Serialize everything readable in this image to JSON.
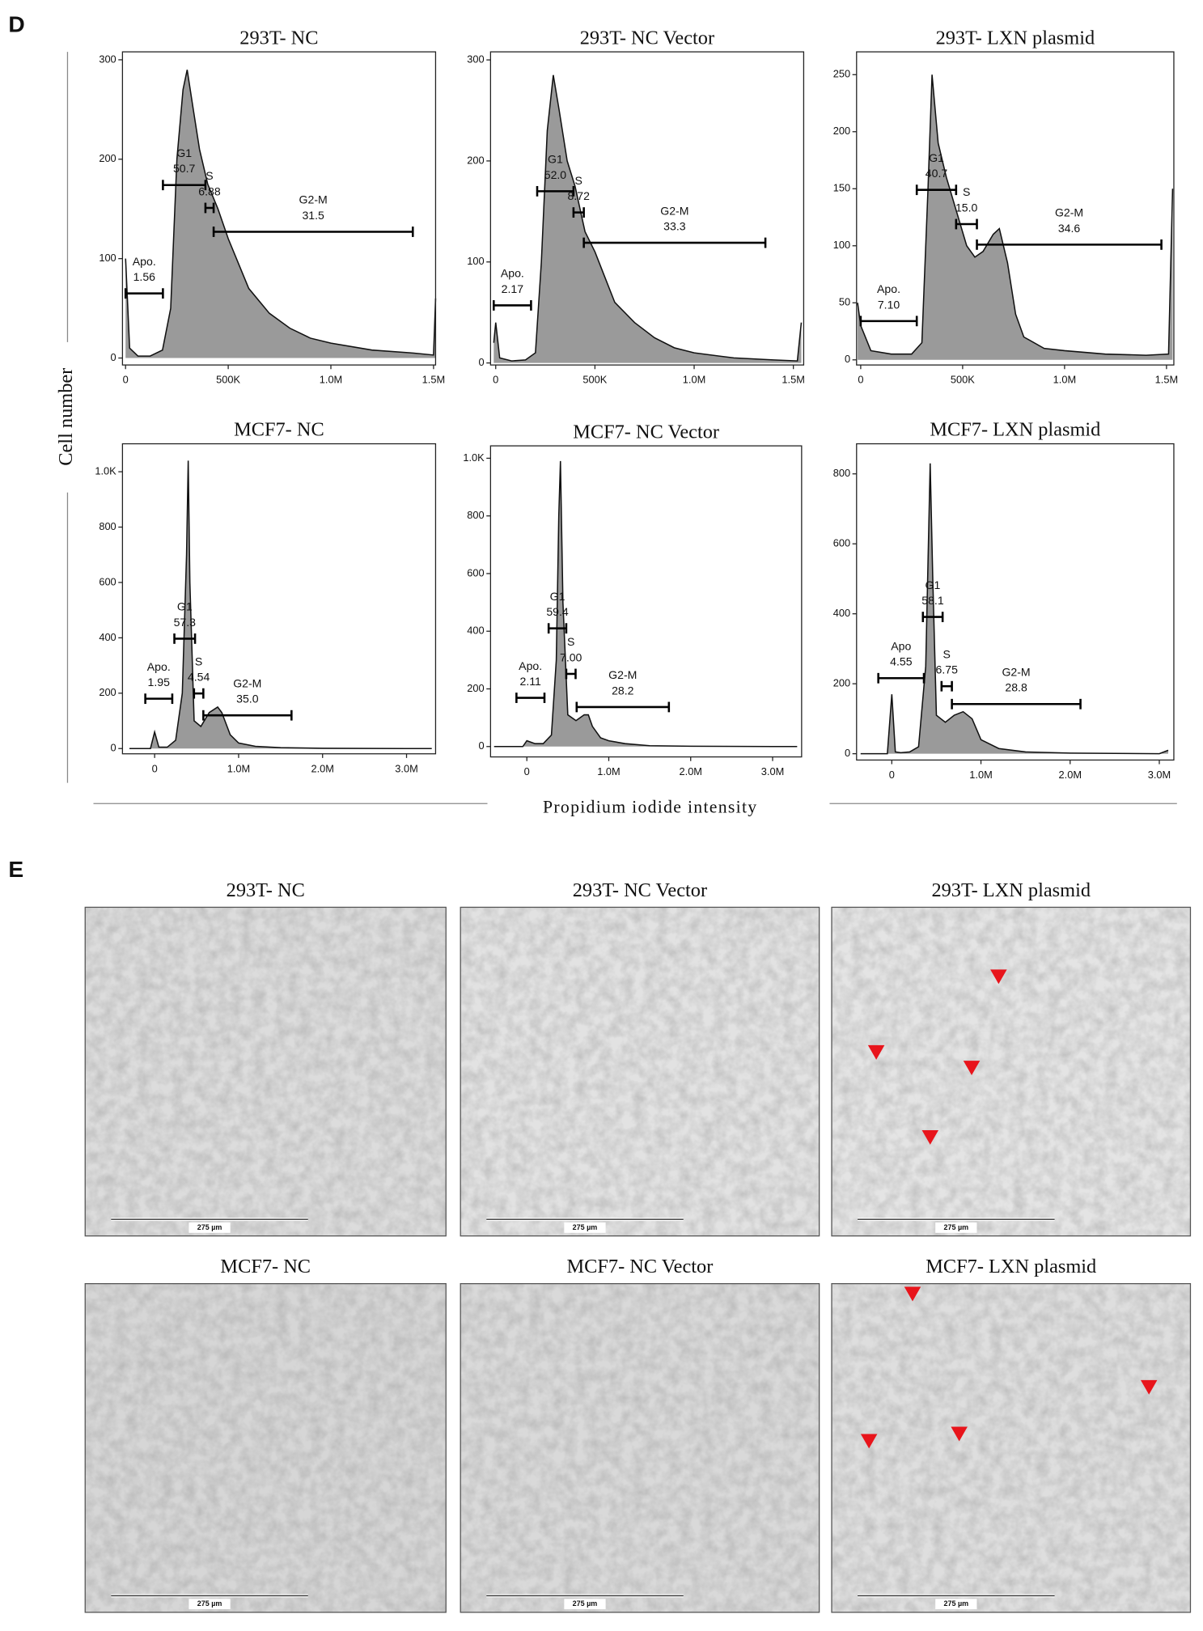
{
  "figure": {
    "panel_d_label": "D",
    "y_label": "Cell number",
    "x_label": "Propidium iodide intensity",
    "panel_e_label": "E",
    "images": [
      {
        "title": "293T- NC",
        "scale_bar": "275 µm"
      },
      {
        "title": "293T- NC Vector",
        "scale_bar": "275 µm"
      },
      {
        "title": "293T- LXN plasmid",
        "scale_bar": "275 µm"
      },
      {
        "title": "MCF7- NC",
        "scale_bar": "275 µm"
      },
      {
        "title": "MCF7- NC Vector",
        "scale_bar": "275 µm"
      },
      {
        "title": "MCF7- LXN plasmid",
        "scale_bar": "275 µm"
      }
    ]
  },
  "chart_data": [
    {
      "type": "histogram-area",
      "title": "293T- NC",
      "color": "#9a9a9a",
      "x": [
        0,
        20000,
        60000,
        120000,
        180000,
        220000,
        250000,
        280000,
        300000,
        330000,
        360000,
        400000,
        450000,
        500000,
        550000,
        600000,
        700000,
        800000,
        900000,
        1000000,
        1200000,
        1400000,
        1500000,
        1510000
      ],
      "values": [
        100,
        10,
        2,
        2,
        8,
        50,
        200,
        270,
        290,
        250,
        210,
        175,
        150,
        120,
        95,
        70,
        45,
        30,
        20,
        15,
        8,
        5,
        3,
        60
      ],
      "xlim": [
        -15000,
        1510000
      ],
      "ylim": [
        -7,
        308
      ],
      "xticks": [
        0,
        {
          "value": 500000,
          "label": "500K"
        },
        {
          "value": 1000000,
          "label": "1.0M"
        },
        {
          "value": 1500000,
          "label": "1.5M"
        }
      ],
      "yticks": [
        0,
        100,
        200,
        300
      ],
      "gates": [
        {
          "name": "Apo.",
          "percent": 1.56,
          "range": [
            0,
            182000
          ],
          "level": 65
        },
        {
          "name": "G1",
          "percent": 50.7,
          "range": [
            182000,
            389000
          ],
          "level": 174
        },
        {
          "name": "S",
          "percent": 6.88,
          "range": [
            389000,
            429000
          ],
          "level": 151
        },
        {
          "name": "G2-M",
          "percent": 31.5,
          "range": [
            429000,
            1399000
          ],
          "level": 127
        }
      ]
    },
    {
      "type": "histogram-area",
      "title": "293T- NC Vector",
      "color": "#9a9a9a",
      "x": [
        -10000,
        0,
        20000,
        80000,
        150000,
        200000,
        230000,
        260000,
        290000,
        320000,
        360000,
        400000,
        450000,
        500000,
        550000,
        600000,
        700000,
        800000,
        900000,
        1000000,
        1200000,
        1400000,
        1520000,
        1540000
      ],
      "values": [
        20,
        40,
        5,
        2,
        3,
        10,
        100,
        230,
        285,
        250,
        200,
        175,
        130,
        110,
        85,
        60,
        40,
        25,
        15,
        10,
        5,
        3,
        2,
        40
      ],
      "xlim": [
        -26000,
        1552000
      ],
      "ylim": [
        -2,
        308
      ],
      "xticks": [
        0,
        {
          "value": 500000,
          "label": "500K"
        },
        {
          "value": 1000000,
          "label": "1.0M"
        },
        {
          "value": 1500000,
          "label": "1.5M"
        }
      ],
      "yticks": [
        0,
        100,
        200,
        300
      ],
      "gates": [
        {
          "name": "Apo.",
          "percent": 2.17,
          "range": [
            -10000,
            178000
          ],
          "level": 57
        },
        {
          "name": "G1",
          "percent": 52.0,
          "percent_label": "52.0",
          "range": [
            209000,
            392000
          ],
          "level": 170
        },
        {
          "name": "S",
          "percent": 8.72,
          "range": [
            392000,
            444000
          ],
          "level": 149
        },
        {
          "name": "G2-M",
          "percent": 33.3,
          "range": [
            444000,
            1359000
          ],
          "level": 119
        }
      ]
    },
    {
      "type": "histogram-area",
      "title": "293T- LXN plasmid",
      "color": "#9a9a9a",
      "x": [
        -15000,
        0,
        50000,
        150000,
        250000,
        300000,
        330000,
        350000,
        380000,
        420000,
        470000,
        520000,
        560000,
        600000,
        650000,
        680000,
        720000,
        760000,
        800000,
        900000,
        1000000,
        1200000,
        1400000,
        1510000,
        1530000
      ],
      "values": [
        50,
        30,
        8,
        5,
        5,
        15,
        150,
        250,
        190,
        160,
        130,
        100,
        90,
        95,
        110,
        115,
        85,
        40,
        20,
        10,
        8,
        5,
        4,
        5,
        150
      ],
      "xlim": [
        -20300,
        1536000
      ],
      "ylim": [
        -4.5,
        270
      ],
      "xticks": [
        0,
        {
          "value": 500000,
          "label": "500K"
        },
        {
          "value": 1000000,
          "label": "1.0M"
        },
        {
          "value": 1500000,
          "label": "1.5M"
        }
      ],
      "yticks": [
        0,
        50,
        100,
        150,
        200,
        250
      ],
      "gates": [
        {
          "name": "Apo.",
          "percent": 7.1,
          "percent_label": "7.10",
          "range": [
            0,
            275000
          ],
          "level": 34
        },
        {
          "name": "G1",
          "percent": 40.7,
          "range": [
            275000,
            468000
          ],
          "level": 149
        },
        {
          "name": "S",
          "percent": 15.0,
          "percent_label": "15.0",
          "range": [
            468000,
            570000
          ],
          "level": 119
        },
        {
          "name": "G2-M",
          "percent": 34.6,
          "range": [
            570000,
            1475000
          ],
          "level": 101
        }
      ]
    },
    {
      "type": "histogram-area",
      "title": "MCF7- NC",
      "color": "#9a9a9a",
      "x": [
        -300000,
        -50000,
        0,
        50000,
        150000,
        250000,
        330000,
        380000,
        400000,
        420000,
        470000,
        550000,
        650000,
        750000,
        800000,
        900000,
        1000000,
        1200000,
        1500000,
        2000000,
        3000000,
        3300000
      ],
      "values": [
        0,
        0,
        60,
        5,
        5,
        30,
        200,
        700,
        1040,
        600,
        100,
        80,
        130,
        150,
        130,
        50,
        20,
        8,
        3,
        1,
        0,
        0
      ],
      "xlim": [
        -383000,
        3346000
      ],
      "ylim": [
        -19,
        1101
      ],
      "xticks": [
        0,
        {
          "value": 1000000,
          "label": "1.0M"
        },
        {
          "value": 2000000,
          "label": "2.0M"
        },
        {
          "value": 3000000,
          "label": "3.0M"
        }
      ],
      "yticks": [
        0,
        200,
        400,
        600,
        800,
        {
          "value": 1000,
          "label": "1.0K"
        }
      ],
      "gates": [
        {
          "name": "Apo.",
          "percent": 1.95,
          "range": [
            -111000,
            210000
          ],
          "level": 180
        },
        {
          "name": "G1",
          "percent": 57.3,
          "range": [
            235000,
            481000
          ],
          "level": 397
        },
        {
          "name": "S",
          "percent": 4.54,
          "range": [
            469000,
            580000
          ],
          "level": 199
        },
        {
          "name": "G2-M",
          "percent": 35.0,
          "percent_label": "35.0",
          "range": [
            580000,
            1630000
          ],
          "level": 120
        }
      ]
    },
    {
      "type": "histogram-area",
      "title": "MCF7- NC Vector",
      "color": "#9a9a9a",
      "x": [
        -400000,
        -50000,
        0,
        100000,
        200000,
        300000,
        360000,
        390000,
        410000,
        440000,
        500000,
        600000,
        700000,
        750000,
        800000,
        900000,
        1000000,
        1200000,
        1500000,
        2000000,
        3000000,
        3300000
      ],
      "values": [
        0,
        0,
        20,
        10,
        10,
        40,
        300,
        800,
        990,
        500,
        110,
        90,
        110,
        110,
        70,
        30,
        20,
        10,
        3,
        1,
        0,
        0
      ],
      "xlim": [
        -443000,
        3354000
      ],
      "ylim": [
        -36,
        1043
      ],
      "xticks": [
        0,
        {
          "value": 1000000,
          "label": "1.0M"
        },
        {
          "value": 2000000,
          "label": "2.0M"
        },
        {
          "value": 3000000,
          "label": "3.0M"
        }
      ],
      "yticks": [
        0,
        200,
        400,
        600,
        800,
        {
          "value": 1000,
          "label": "1.0K"
        }
      ],
      "gates": [
        {
          "name": "Apo.",
          "percent": 2.11,
          "range": [
            -127000,
            215000
          ],
          "level": 169
        },
        {
          "name": "G1",
          "percent": 59.4,
          "range": [
            266000,
            481000
          ],
          "level": 410
        },
        {
          "name": "S",
          "percent": 7.0,
          "percent_label": "7.00",
          "range": [
            481000,
            595000
          ],
          "level": 252
        },
        {
          "name": "G2-M",
          "percent": 28.2,
          "range": [
            608000,
            1734000
          ],
          "level": 137
        }
      ]
    },
    {
      "type": "histogram-area",
      "title": "MCF7- LXN plasmid",
      "color": "#9a9a9a",
      "x": [
        -350000,
        -50000,
        0,
        40000,
        100000,
        200000,
        300000,
        380000,
        430000,
        460000,
        500000,
        600000,
        700000,
        800000,
        900000,
        1000000,
        1200000,
        1500000,
        2000000,
        2500000,
        3000000,
        3100000
      ],
      "values": [
        0,
        0,
        170,
        5,
        3,
        5,
        20,
        250,
        830,
        500,
        110,
        90,
        110,
        120,
        100,
        40,
        15,
        5,
        2,
        1,
        0,
        10
      ],
      "xlim": [
        -395000,
        3163000
      ],
      "ylim": [
        -18,
        886
      ],
      "xticks": [
        0,
        {
          "value": 1000000,
          "label": "1.0M"
        },
        {
          "value": 2000000,
          "label": "2.0M"
        },
        {
          "value": 3000000,
          "label": "3.0M"
        }
      ],
      "yticks": [
        0,
        200,
        400,
        600,
        800
      ],
      "gates": [
        {
          "name": "Apo",
          "percent": 4.55,
          "range": [
            -151000,
            360000
          ],
          "level": 216
        },
        {
          "name": "G1",
          "percent": 58.1,
          "range": [
            349000,
            570000
          ],
          "level": 391
        },
        {
          "name": "S",
          "percent": 6.75,
          "range": [
            558000,
            674000
          ],
          "level": 193
        },
        {
          "name": "G2-M",
          "percent": 28.8,
          "range": [
            674000,
            2116000
          ],
          "level": 142
        }
      ]
    }
  ]
}
